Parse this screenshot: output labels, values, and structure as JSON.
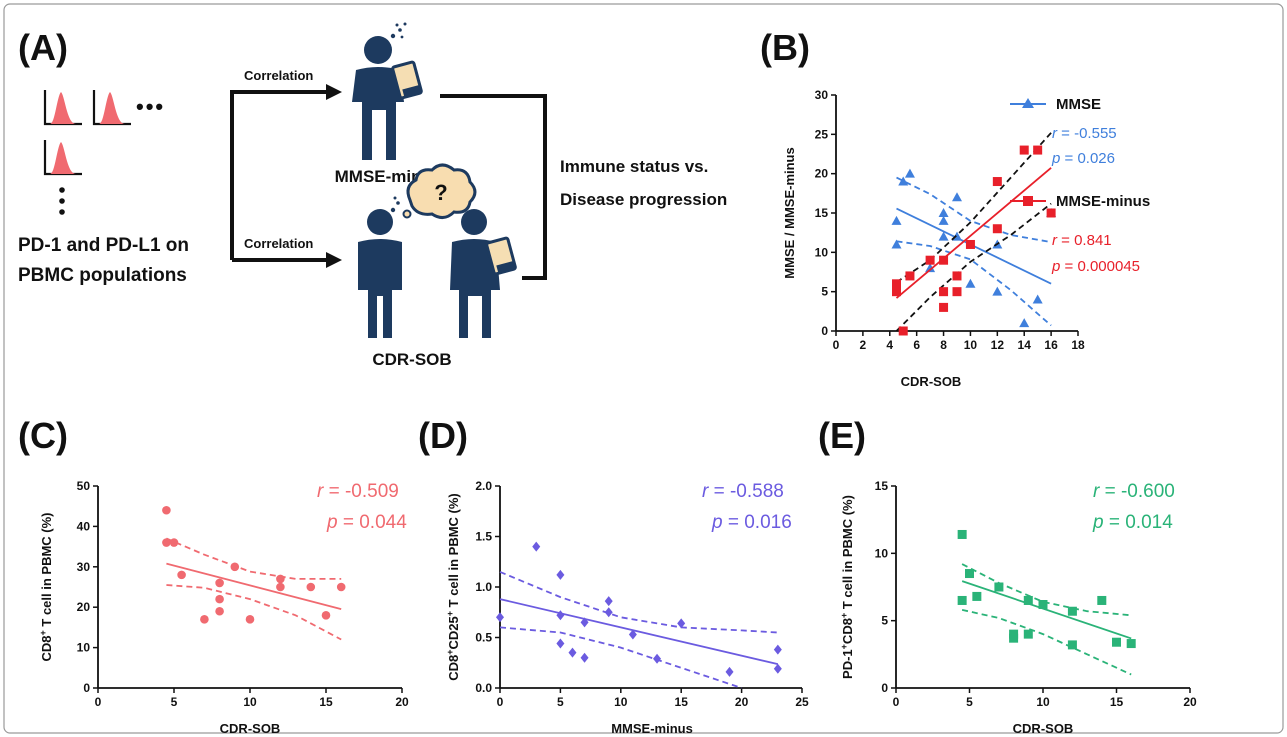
{
  "panels": {
    "A": {
      "label": "(A)",
      "corr_top": "Correlation",
      "corr_bottom": "Correlation",
      "markers_line1": "PD-1 and PD-L1 on",
      "markers_line2": "PBMC populations",
      "ellipsis": "•••",
      "mmse_label": "MMSE-minus",
      "cdr_label": "CDR-SOB",
      "question": "?",
      "immune_line1": "Immune status vs.",
      "immune_line2": "Disease progression",
      "colors": {
        "figure": "#1d3a5f",
        "histogram": "#f06a70"
      }
    },
    "B": {
      "label": "(B)"
    },
    "C": {
      "label": "(C)"
    },
    "D": {
      "label": "(D)"
    },
    "E": {
      "label": "(E)"
    }
  },
  "chart_data": [
    {
      "id": "B",
      "type": "scatter",
      "xlabel": "CDR-SOB",
      "ylabel": "MMSE / MMSE-minus",
      "xlim": [
        0,
        18
      ],
      "ylim": [
        0,
        30
      ],
      "xticks": [
        0,
        2,
        4,
        6,
        8,
        10,
        12,
        14,
        16,
        18
      ],
      "yticks": [
        0,
        5,
        10,
        15,
        20,
        25,
        30
      ],
      "legend_position": "right",
      "series": [
        {
          "name": "MMSE",
          "marker": "triangle",
          "color": "#3f7fdc",
          "r_label": "r",
          "r_value": " = -0.555",
          "p_label": "p",
          "p_value": " = 0.026",
          "points": [
            [
              4.5,
              14
            ],
            [
              4.5,
              11
            ],
            [
              5,
              19
            ],
            [
              5.5,
              20
            ],
            [
              7,
              8
            ],
            [
              8,
              15
            ],
            [
              8,
              14
            ],
            [
              8,
              12
            ],
            [
              9,
              17
            ],
            [
              9,
              12
            ],
            [
              10,
              6
            ],
            [
              12,
              11
            ],
            [
              12,
              5
            ],
            [
              14,
              1
            ],
            [
              15,
              4
            ],
            [
              16,
              15
            ]
          ],
          "fit": {
            "intercept": 19.3,
            "slope": -0.83
          },
          "ci_band": {
            "upper": [
              [
                4.5,
                19.5
              ],
              [
                7,
                17.4
              ],
              [
                10,
                14.0
              ],
              [
                13,
                12.2
              ],
              [
                16,
                11.3
              ]
            ],
            "lower": [
              [
                4.5,
                11.4
              ],
              [
                7,
                10.8
              ],
              [
                10,
                9.1
              ],
              [
                13,
                5.2
              ],
              [
                16,
                0.7
              ]
            ]
          }
        },
        {
          "name": "MMSE-minus",
          "marker": "square",
          "color": "#e8202a",
          "r_label": "r",
          "r_value": " = 0.841",
          "p_label": "p",
          "p_value": " = 0.000045",
          "points": [
            [
              4.5,
              6
            ],
            [
              4.5,
              5
            ],
            [
              5,
              0
            ],
            [
              5.5,
              7
            ],
            [
              7,
              9
            ],
            [
              8,
              9
            ],
            [
              8,
              5
            ],
            [
              8,
              3
            ],
            [
              9,
              7
            ],
            [
              9,
              5
            ],
            [
              10,
              11
            ],
            [
              12,
              19
            ],
            [
              12,
              13
            ],
            [
              14,
              23
            ],
            [
              15,
              23
            ],
            [
              16,
              15
            ]
          ],
          "fit": {
            "intercept": -2.3,
            "slope": 1.44
          },
          "ci_band": {
            "upper": [
              [
                4.5,
                6.2
              ],
              [
                7,
                9.0
              ],
              [
                10,
                13.8
              ],
              [
                13,
                19.5
              ],
              [
                16,
                25.2
              ]
            ],
            "lower": [
              [
                4.5,
                0.0
              ],
              [
                7,
                4.3
              ],
              [
                10,
                8.8
              ],
              [
                13,
                12.2
              ],
              [
                16,
                16.2
              ]
            ]
          }
        }
      ]
    },
    {
      "id": "C",
      "type": "scatter",
      "xlabel": "CDR-SOB",
      "ylabel_main": "CD8",
      "ylabel_sup": "+",
      "ylabel_rest": " T cell in PBMC (%)",
      "xlim": [
        0,
        20
      ],
      "ylim": [
        0,
        50
      ],
      "xticks": [
        0,
        5,
        10,
        15,
        20
      ],
      "yticks": [
        0,
        10,
        20,
        30,
        40,
        50
      ],
      "color": "#f06a70",
      "marker": "circle",
      "r_label": "r",
      "r_value": " = -0.509",
      "p_label": "p",
      "p_value": " = 0.044",
      "points": [
        [
          4.5,
          44
        ],
        [
          4.5,
          36
        ],
        [
          5,
          36
        ],
        [
          5.5,
          28
        ],
        [
          7,
          17
        ],
        [
          8,
          26
        ],
        [
          8,
          22
        ],
        [
          8,
          19
        ],
        [
          9,
          30
        ],
        [
          10,
          17
        ],
        [
          12,
          27
        ],
        [
          12,
          25
        ],
        [
          14,
          25
        ],
        [
          15,
          18
        ],
        [
          16,
          25
        ]
      ],
      "fit": {
        "intercept": 35.2,
        "slope": -0.98
      },
      "ci_band": {
        "upper": [
          [
            4.5,
            37.0
          ],
          [
            7,
            33.0
          ],
          [
            10,
            28.8
          ],
          [
            13,
            27.0
          ],
          [
            16,
            27.0
          ]
        ],
        "lower": [
          [
            4.5,
            25.5
          ],
          [
            7,
            24.8
          ],
          [
            10,
            22.0
          ],
          [
            13,
            18.0
          ],
          [
            16,
            12.0
          ]
        ]
      }
    },
    {
      "id": "D",
      "type": "scatter",
      "xlabel": "MMSE-minus",
      "ylabel_main": "CD8",
      "ylabel_sup": "+",
      "ylabel_mid": "CD25",
      "ylabel_sup2": "+",
      "ylabel_rest": " T cell in PBMC (%)",
      "xlim": [
        0,
        25
      ],
      "ylim": [
        0,
        2
      ],
      "xticks": [
        0,
        5,
        10,
        15,
        20,
        25
      ],
      "yticks": [
        "0.0",
        "0.5",
        "1.0",
        "1.5",
        "2.0"
      ],
      "color": "#6b5be0",
      "marker": "diamond",
      "r_label": "r",
      "r_value": " = -0.588",
      "p_label": "p",
      "p_value": " = 0.016",
      "points": [
        [
          0,
          0.7
        ],
        [
          3,
          1.4
        ],
        [
          5,
          1.12
        ],
        [
          5,
          0.72
        ],
        [
          5,
          0.44
        ],
        [
          6,
          0.35
        ],
        [
          7,
          0.65
        ],
        [
          7,
          0.3
        ],
        [
          9,
          0.86
        ],
        [
          9,
          0.75
        ],
        [
          11,
          0.53
        ],
        [
          13,
          0.29
        ],
        [
          15,
          0.64
        ],
        [
          19,
          0.16
        ],
        [
          23,
          0.38
        ],
        [
          23,
          0.19
        ]
      ],
      "fit": {
        "intercept": 0.88,
        "slope": -0.028
      },
      "ci_band": {
        "upper": [
          [
            0,
            1.15
          ],
          [
            5,
            0.9
          ],
          [
            10,
            0.7
          ],
          [
            15,
            0.6
          ],
          [
            20,
            0.57
          ],
          [
            23,
            0.55
          ]
        ],
        "lower": [
          [
            0,
            0.6
          ],
          [
            5,
            0.55
          ],
          [
            10,
            0.4
          ],
          [
            15,
            0.2
          ],
          [
            20,
            0.0
          ]
        ]
      }
    },
    {
      "id": "E",
      "type": "scatter",
      "xlabel": "CDR-SOB",
      "ylabel_main": "PD-1",
      "ylabel_sup": "+",
      "ylabel_mid": "CD8",
      "ylabel_sup2": "+",
      "ylabel_rest": " T cell in PBMC (%)",
      "xlim": [
        0,
        20
      ],
      "ylim": [
        0,
        15
      ],
      "xticks": [
        0,
        5,
        10,
        15,
        20
      ],
      "yticks": [
        0,
        5,
        10,
        15
      ],
      "color": "#2ab378",
      "marker": "square",
      "r_label": "r",
      "r_value": " = -0.600",
      "p_label": "p",
      "p_value": " = 0.014",
      "points": [
        [
          4.5,
          11.4
        ],
        [
          4.5,
          6.5
        ],
        [
          5,
          8.5
        ],
        [
          5.5,
          6.8
        ],
        [
          7,
          7.5
        ],
        [
          8,
          4.0
        ],
        [
          8,
          3.7
        ],
        [
          9,
          6.5
        ],
        [
          9,
          4.0
        ],
        [
          10,
          6.2
        ],
        [
          12,
          5.7
        ],
        [
          12,
          3.2
        ],
        [
          14,
          6.5
        ],
        [
          15,
          3.4
        ],
        [
          16,
          3.3
        ]
      ],
      "fit": {
        "intercept": 9.6,
        "slope": -0.37
      },
      "ci_band": {
        "upper": [
          [
            4.5,
            9.2
          ],
          [
            7,
            7.8
          ],
          [
            10,
            6.4
          ],
          [
            13,
            5.7
          ],
          [
            16,
            5.4
          ]
        ],
        "lower": [
          [
            4.5,
            5.8
          ],
          [
            7,
            5.2
          ],
          [
            10,
            4.0
          ],
          [
            13,
            2.5
          ],
          [
            16,
            1.0
          ]
        ]
      }
    }
  ]
}
